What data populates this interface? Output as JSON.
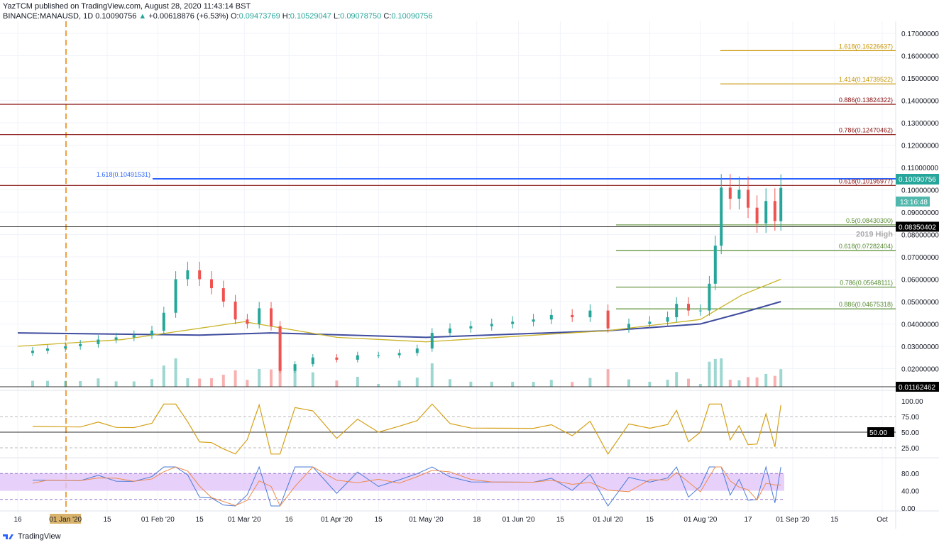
{
  "header": {
    "publisher": "YazTCM published on TradingView.com, August 28, 2020 11:43:14 BST",
    "symbol": "BINANCE:MANAUSD, 1D",
    "last": "0.10090756",
    "change": "+0.00618876 (+6.53%)",
    "o_label": "O:",
    "o": "0.09473769",
    "h_label": "H:",
    "h": "0.10529047",
    "l_label": "L:",
    "l": "0.09078750",
    "c_label": "C:",
    "c": "0.10090756"
  },
  "footer": {
    "brand": "TradingView"
  },
  "chart_data": {
    "type": "candlestick",
    "ylim": [
      0,
      0.175
    ],
    "y_ticks": [
      "0.17000000",
      "0.16000000",
      "0.15000000",
      "0.14000000",
      "0.13000000",
      "0.12000000",
      "0.11000000",
      "0.10000000",
      "0.09000000",
      "0.08000000",
      "0.07000000",
      "0.06000000",
      "0.05000000",
      "0.04000000",
      "0.03000000",
      "0.02000000"
    ],
    "x_ticks": [
      [
        "2019-12-16",
        "16"
      ],
      [
        "2020-01-01",
        "01 Jan '20"
      ],
      [
        "2020-01-15",
        "15"
      ],
      [
        "2020-02-01",
        "01 Feb '20"
      ],
      [
        "2020-02-15",
        "15"
      ],
      [
        "2020-03-01",
        "01 Mar '20"
      ],
      [
        "2020-03-16",
        "16"
      ],
      [
        "2020-04-01",
        "01 Apr '20"
      ],
      [
        "2020-04-15",
        "15"
      ],
      [
        "2020-05-01",
        "01 May '20"
      ],
      [
        "2020-05-18",
        "18"
      ],
      [
        "2020-06-01",
        "01 Jun '20"
      ],
      [
        "2020-06-15",
        "15"
      ],
      [
        "2020-07-01",
        "01 Jul '20"
      ],
      [
        "2020-07-15",
        "15"
      ],
      [
        "2020-08-01",
        "01 Aug '20"
      ],
      [
        "2020-08-17",
        "17"
      ],
      [
        "2020-09-01",
        "01 Sep '20"
      ],
      [
        "2020-09-15",
        "15"
      ],
      [
        "2020-10-01",
        "Oct"
      ]
    ],
    "highlighted_x_tick": "01 Jan '20",
    "closes": [
      [
        "2019-12-16",
        0.027
      ],
      [
        "2019-12-21",
        0.028
      ],
      [
        "2019-12-26",
        0.029
      ],
      [
        "2020-01-01",
        0.03
      ],
      [
        "2020-01-06",
        0.031
      ],
      [
        "2020-01-12",
        0.033
      ],
      [
        "2020-01-18",
        0.034
      ],
      [
        "2020-01-24",
        0.035
      ],
      [
        "2020-01-30",
        0.037
      ],
      [
        "2020-02-03",
        0.045
      ],
      [
        "2020-02-07",
        0.06
      ],
      [
        "2020-02-11",
        0.064
      ],
      [
        "2020-02-15",
        0.06
      ],
      [
        "2020-02-19",
        0.056
      ],
      [
        "2020-02-23",
        0.05
      ],
      [
        "2020-02-27",
        0.042
      ],
      [
        "2020-03-02",
        0.04
      ],
      [
        "2020-03-06",
        0.047
      ],
      [
        "2020-03-10",
        0.039
      ],
      [
        "2020-03-13",
        0.019
      ],
      [
        "2020-03-18",
        0.022
      ],
      [
        "2020-03-24",
        0.025
      ],
      [
        "2020-04-01",
        0.024
      ],
      [
        "2020-04-08",
        0.026
      ],
      [
        "2020-04-15",
        0.026
      ],
      [
        "2020-04-22",
        0.027
      ],
      [
        "2020-04-28",
        0.029
      ],
      [
        "2020-05-03",
        0.036
      ],
      [
        "2020-05-09",
        0.038
      ],
      [
        "2020-05-16",
        0.039
      ],
      [
        "2020-05-23",
        0.04
      ],
      [
        "2020-05-30",
        0.041
      ],
      [
        "2020-06-06",
        0.042
      ],
      [
        "2020-06-12",
        0.044
      ],
      [
        "2020-06-19",
        0.043
      ],
      [
        "2020-06-25",
        0.046
      ],
      [
        "2020-07-01",
        0.038
      ],
      [
        "2020-07-08",
        0.04
      ],
      [
        "2020-07-15",
        0.041
      ],
      [
        "2020-07-21",
        0.043
      ],
      [
        "2020-07-24",
        0.049
      ],
      [
        "2020-07-28",
        0.046
      ],
      [
        "2020-08-01",
        0.046
      ],
      [
        "2020-08-04",
        0.058
      ],
      [
        "2020-08-06",
        0.075
      ],
      [
        "2020-08-08",
        0.101
      ],
      [
        "2020-08-11",
        0.096
      ],
      [
        "2020-08-14",
        0.1
      ],
      [
        "2020-08-17",
        0.092
      ],
      [
        "2020-08-20",
        0.085
      ],
      [
        "2020-08-23",
        0.095
      ],
      [
        "2020-08-26",
        0.086
      ],
      [
        "2020-08-28",
        0.1009
      ]
    ],
    "ma_200": [
      [
        "2019-12-16",
        0.036
      ],
      [
        "2020-02-15",
        0.035
      ],
      [
        "2020-03-10",
        0.036
      ],
      [
        "2020-05-01",
        0.034
      ],
      [
        "2020-07-01",
        0.037
      ],
      [
        "2020-08-01",
        0.04
      ],
      [
        "2020-08-15",
        0.045
      ],
      [
        "2020-08-28",
        0.05
      ]
    ],
    "ma_100": [
      [
        "2019-12-16",
        0.03
      ],
      [
        "2020-01-20",
        0.033
      ],
      [
        "2020-03-01",
        0.041
      ],
      [
        "2020-04-01",
        0.034
      ],
      [
        "2020-05-01",
        0.032
      ],
      [
        "2020-07-01",
        0.037
      ],
      [
        "2020-08-01",
        0.042
      ],
      [
        "2020-08-15",
        0.053
      ],
      [
        "2020-08-28",
        0.06
      ]
    ],
    "fib_levels": [
      {
        "label": "1.618(0.16226637)",
        "value": 0.16226637,
        "color": "#c79400",
        "side": "right"
      },
      {
        "label": "1.414(0.14739522)",
        "value": 0.14739522,
        "color": "#c79400",
        "side": "right"
      },
      {
        "label": "0.886(0.13824322)",
        "value": 0.13824322,
        "color": "#880e0e",
        "side": "right"
      },
      {
        "label": "0.786(0.12470462)",
        "value": 0.12470462,
        "color": "#880e0e",
        "side": "right"
      },
      {
        "label": "1.618(0.10491531)",
        "value": 0.10491531,
        "color": "#2962ff",
        "side": "left"
      },
      {
        "label": "0.618(0.10195977)",
        "value": 0.10195977,
        "color": "#880e0e",
        "side": "right"
      },
      {
        "label": "0.5(0.08430300)",
        "value": 0.084303,
        "color": "#558b2f",
        "side": "right"
      },
      {
        "label": "0.618(0.07282404)",
        "value": 0.07282404,
        "color": "#558b2f",
        "side": "right"
      },
      {
        "label": "0.786(0.05648111)",
        "value": 0.05648111,
        "color": "#558b2f",
        "side": "right"
      },
      {
        "label": "0.886(0.04675318)",
        "value": 0.04675318,
        "color": "#558b2f",
        "side": "right"
      }
    ],
    "support_line": {
      "value": 0.08350402,
      "label": "0.08350402",
      "annotation": "2019 High"
    },
    "last_price": {
      "value": 0.10090756,
      "label": "0.10090756",
      "countdown": "13:16:48"
    },
    "volume_label": "0.01162462",
    "rsi": {
      "ticks": [
        "100.00",
        "75.00",
        "50.00",
        "25.00"
      ],
      "marker": "50.00"
    },
    "stoch": {
      "ticks": [
        "80.00",
        "40.00",
        "0.00"
      ]
    },
    "colors": {
      "up": "#26a69a",
      "down": "#ef5350",
      "ma200": "#3f4c9e",
      "ma100": "#c9b428",
      "rsi": "#d4a017",
      "stoch_k": "#4a7bd6",
      "stoch_d": "#f08a4b",
      "stoch_band": "#e1c6fa"
    }
  }
}
